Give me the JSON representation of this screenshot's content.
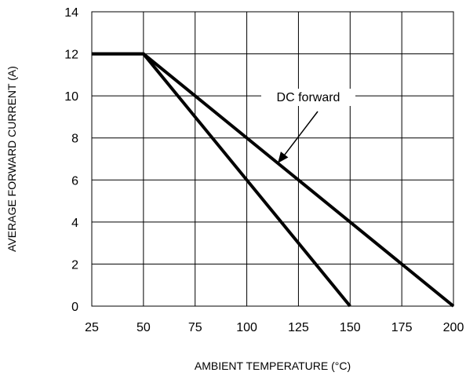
{
  "chart_data": {
    "type": "line",
    "title": "",
    "xlabel": "AMBIENT TEMPERATURE (°C)",
    "ylabel": "AVERAGE FORWARD CURRENT (A)",
    "xlim": [
      25,
      200
    ],
    "ylim": [
      0,
      14
    ],
    "xticks": [
      25,
      50,
      75,
      100,
      125,
      150,
      175,
      200
    ],
    "yticks": [
      0,
      2,
      4,
      6,
      8,
      10,
      12,
      14
    ],
    "grid": true,
    "series": [
      {
        "name": "DC forward",
        "x": [
          25,
          50,
          200
        ],
        "y": [
          12,
          12,
          0
        ]
      },
      {
        "x": [
          25,
          50,
          150
        ],
        "y": [
          12,
          12,
          0
        ]
      }
    ],
    "annotations": [
      {
        "text": "DC forward",
        "points_to_x": 115,
        "points_to_y": 6.8
      }
    ]
  }
}
